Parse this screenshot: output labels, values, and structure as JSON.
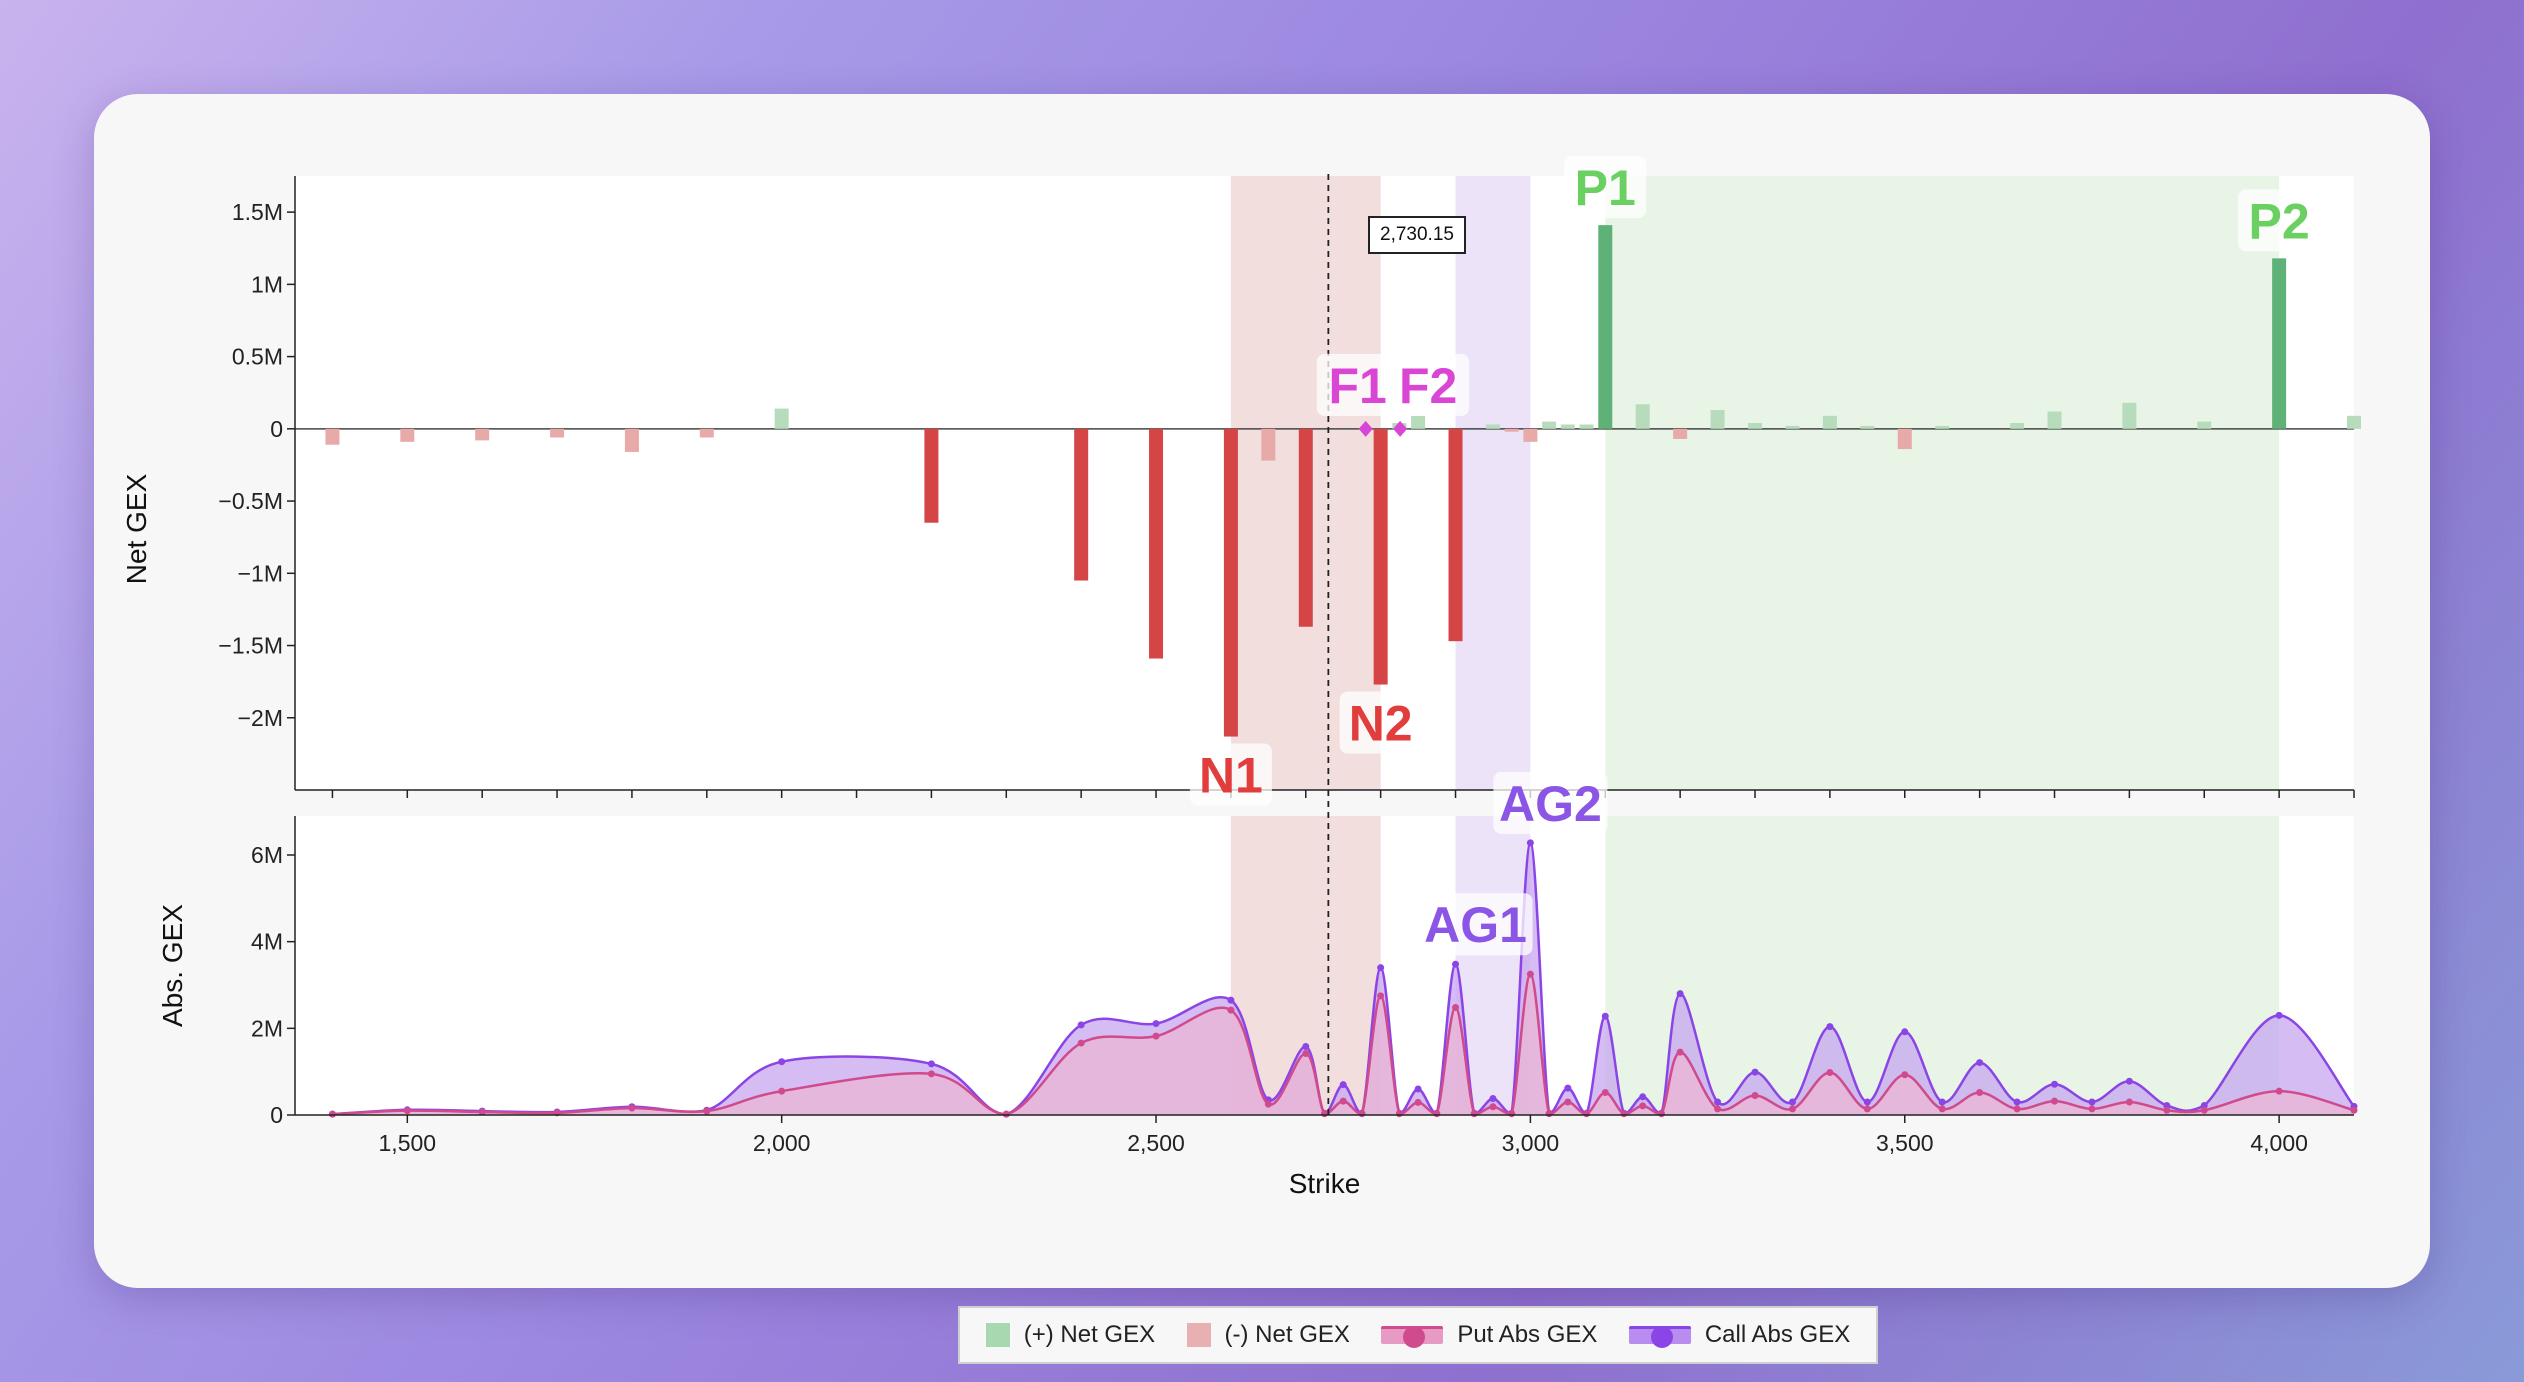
{
  "chart_data": {
    "type": "bar+area",
    "current_price": 2730.15,
    "current_price_label": "2,730.15",
    "x_axis": {
      "label": "Strike",
      "range": [
        1350,
        4100
      ],
      "ticks": [
        1500,
        2000,
        2500,
        3000,
        3500,
        4000
      ],
      "tick_labels": [
        "1,500",
        "2,000",
        "2,500",
        "3,000",
        "3,500",
        "4,000"
      ]
    },
    "top_panel": {
      "ylabel": "Net GEX",
      "ylim": [
        -2.5,
        1.75
      ],
      "yticks": [
        -2,
        -1.5,
        -1,
        -0.5,
        0,
        0.5,
        1,
        1.5
      ],
      "ytick_labels": [
        "−2M",
        "−1.5M",
        "−1M",
        "−0.5M",
        "0",
        "0.5M",
        "1M",
        "1.5M"
      ],
      "bars": [
        {
          "strike": 1400,
          "value": -0.11
        },
        {
          "strike": 1500,
          "value": -0.09
        },
        {
          "strike": 1600,
          "value": -0.08
        },
        {
          "strike": 1700,
          "value": -0.06
        },
        {
          "strike": 1800,
          "value": -0.16
        },
        {
          "strike": 1900,
          "value": -0.06
        },
        {
          "strike": 2000,
          "value": 0.14
        },
        {
          "strike": 2200,
          "value": -0.65
        },
        {
          "strike": 2400,
          "value": -1.05
        },
        {
          "strike": 2500,
          "value": -1.59
        },
        {
          "strike": 2600,
          "value": -2.13
        },
        {
          "strike": 2650,
          "value": -0.22
        },
        {
          "strike": 2700,
          "value": -1.37
        },
        {
          "strike": 2800,
          "value": -1.77
        },
        {
          "strike": 2825,
          "value": 0.04
        },
        {
          "strike": 2850,
          "value": 0.09
        },
        {
          "strike": 2900,
          "value": -1.47
        },
        {
          "strike": 2950,
          "value": 0.03
        },
        {
          "strike": 2975,
          "value": -0.02
        },
        {
          "strike": 3000,
          "value": -0.09
        },
        {
          "strike": 3025,
          "value": 0.05
        },
        {
          "strike": 3050,
          "value": 0.03
        },
        {
          "strike": 3075,
          "value": 0.03
        },
        {
          "strike": 3100,
          "value": 1.41
        },
        {
          "strike": 3150,
          "value": 0.17
        },
        {
          "strike": 3200,
          "value": -0.07
        },
        {
          "strike": 3250,
          "value": 0.13
        },
        {
          "strike": 3300,
          "value": 0.04
        },
        {
          "strike": 3350,
          "value": 0.02
        },
        {
          "strike": 3400,
          "value": 0.09
        },
        {
          "strike": 3450,
          "value": 0.02
        },
        {
          "strike": 3500,
          "value": -0.14
        },
        {
          "strike": 3550,
          "value": 0.02
        },
        {
          "strike": 3650,
          "value": 0.04
        },
        {
          "strike": 3700,
          "value": 0.12
        },
        {
          "strike": 3800,
          "value": 0.18
        },
        {
          "strike": 3900,
          "value": 0.05
        },
        {
          "strike": 4000,
          "value": 1.18
        },
        {
          "strike": 4100,
          "value": 0.09
        }
      ]
    },
    "bottom_panel": {
      "ylabel": "Abs. GEX",
      "ylim": [
        0,
        6.9
      ],
      "yticks": [
        0,
        2,
        4,
        6
      ],
      "ytick_labels": [
        "0",
        "2M",
        "4M",
        "6M"
      ],
      "series": [
        {
          "name": "Call Abs GEX",
          "points": [
            [
              1400,
              0.02
            ],
            [
              1500,
              0.12
            ],
            [
              1600,
              0.09
            ],
            [
              1700,
              0.07
            ],
            [
              1800,
              0.19
            ],
            [
              1900,
              0.11
            ],
            [
              2000,
              1.23
            ],
            [
              2200,
              1.18
            ],
            [
              2300,
              0.02
            ],
            [
              2400,
              2.08
            ],
            [
              2500,
              2.11
            ],
            [
              2600,
              2.65
            ],
            [
              2650,
              0.35
            ],
            [
              2700,
              1.58
            ],
            [
              2725,
              0.04
            ],
            [
              2750,
              0.7
            ],
            [
              2775,
              0.04
            ],
            [
              2800,
              3.4
            ],
            [
              2825,
              0.04
            ],
            [
              2850,
              0.6
            ],
            [
              2875,
              0.04
            ],
            [
              2900,
              3.48
            ],
            [
              2925,
              0.04
            ],
            [
              2950,
              0.38
            ],
            [
              2975,
              0.04
            ],
            [
              3000,
              6.28
            ],
            [
              3025,
              0.04
            ],
            [
              3050,
              0.62
            ],
            [
              3075,
              0.04
            ],
            [
              3100,
              2.28
            ],
            [
              3125,
              0.04
            ],
            [
              3150,
              0.42
            ],
            [
              3175,
              0.04
            ],
            [
              3200,
              2.8
            ],
            [
              3250,
              0.3
            ],
            [
              3300,
              0.99
            ],
            [
              3350,
              0.3
            ],
            [
              3400,
              2.04
            ],
            [
              3450,
              0.3
            ],
            [
              3500,
              1.92
            ],
            [
              3550,
              0.3
            ],
            [
              3600,
              1.21
            ],
            [
              3650,
              0.3
            ],
            [
              3700,
              0.71
            ],
            [
              3750,
              0.3
            ],
            [
              3800,
              0.78
            ],
            [
              3850,
              0.22
            ],
            [
              3900,
              0.22
            ],
            [
              4000,
              2.3
            ],
            [
              4100,
              0.2
            ]
          ]
        },
        {
          "name": "Put Abs GEX",
          "points": [
            [
              1400,
              0.02
            ],
            [
              1500,
              0.1
            ],
            [
              1600,
              0.07
            ],
            [
              1700,
              0.05
            ],
            [
              1800,
              0.16
            ],
            [
              1900,
              0.09
            ],
            [
              2000,
              0.55
            ],
            [
              2200,
              0.95
            ],
            [
              2300,
              0.02
            ],
            [
              2400,
              1.66
            ],
            [
              2500,
              1.82
            ],
            [
              2600,
              2.42
            ],
            [
              2650,
              0.25
            ],
            [
              2700,
              1.42
            ],
            [
              2725,
              0.03
            ],
            [
              2750,
              0.32
            ],
            [
              2775,
              0.03
            ],
            [
              2800,
              2.75
            ],
            [
              2825,
              0.03
            ],
            [
              2850,
              0.29
            ],
            [
              2875,
              0.03
            ],
            [
              2900,
              2.48
            ],
            [
              2925,
              0.03
            ],
            [
              2950,
              0.19
            ],
            [
              2975,
              0.03
            ],
            [
              3000,
              3.25
            ],
            [
              3025,
              0.03
            ],
            [
              3050,
              0.3
            ],
            [
              3075,
              0.03
            ],
            [
              3100,
              0.52
            ],
            [
              3125,
              0.03
            ],
            [
              3150,
              0.21
            ],
            [
              3175,
              0.03
            ],
            [
              3200,
              1.45
            ],
            [
              3250,
              0.14
            ],
            [
              3300,
              0.45
            ],
            [
              3350,
              0.14
            ],
            [
              3400,
              0.98
            ],
            [
              3450,
              0.14
            ],
            [
              3500,
              0.93
            ],
            [
              3550,
              0.14
            ],
            [
              3600,
              0.52
            ],
            [
              3650,
              0.14
            ],
            [
              3700,
              0.32
            ],
            [
              3750,
              0.14
            ],
            [
              3800,
              0.3
            ],
            [
              3850,
              0.11
            ],
            [
              3900,
              0.11
            ],
            [
              4000,
              0.55
            ],
            [
              4100,
              0.11
            ]
          ]
        }
      ]
    },
    "bands": [
      {
        "from": 2600,
        "to": 2800,
        "color": "#f2dedd"
      },
      {
        "from": 2900,
        "to": 3000,
        "color": "#ede3f8"
      },
      {
        "from": 3100,
        "to": 4000,
        "color": "#e8f4e6"
      }
    ],
    "annotations": [
      {
        "label": "P1",
        "strike": 3100,
        "value": 1.41,
        "panel": "top",
        "color": "#6ad061"
      },
      {
        "label": "P2",
        "strike": 4000,
        "value": 1.18,
        "panel": "top",
        "color": "#6ad061"
      },
      {
        "label": "F1",
        "strike": 2780,
        "value": 0,
        "panel": "top",
        "color": "#d946d6"
      },
      {
        "label": "F2",
        "strike": 2826,
        "value": 0,
        "panel": "top",
        "color": "#d946d6"
      },
      {
        "label": "N1",
        "strike": 2600,
        "value": -2.13,
        "panel": "top",
        "color": "#e23d3d"
      },
      {
        "label": "N2",
        "strike": 2800,
        "value": -1.77,
        "panel": "top",
        "color": "#e23d3d"
      },
      {
        "label": "AG1",
        "strike": 2900,
        "value": 3.48,
        "panel": "bottom",
        "color": "#8b55e6"
      },
      {
        "label": "AG2",
        "strike": 3000,
        "value": 6.28,
        "panel": "bottom",
        "color": "#8b55e6"
      }
    ],
    "flip_points": [
      2780,
      2826
    ],
    "legend": [
      {
        "label": "(+) Net GEX",
        "color": "#a8d8b0",
        "kind": "square"
      },
      {
        "label": "(-) Net GEX",
        "color": "#e8b1b1",
        "kind": "square"
      },
      {
        "label": "Put Abs GEX",
        "color": "#d04a8e",
        "kind": "line"
      },
      {
        "label": "Call Abs GEX",
        "color": "#8b45e6",
        "kind": "line"
      }
    ],
    "colors": {
      "pos_bar_strong": "#5fb277",
      "pos_bar_weak": "#b6dcbc",
      "neg_bar_strong": "#d64545",
      "neg_bar_weak": "#e8a9a9",
      "call_fill": "#c7a7f0",
      "call_line": "#8b45e6",
      "put_fill": "#ebb6d4",
      "put_line": "#d04a8e",
      "flip": "#d946d6"
    }
  }
}
